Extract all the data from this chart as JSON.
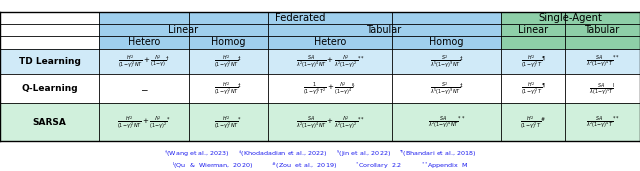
{
  "fig_width": 6.4,
  "fig_height": 1.71,
  "dpi": 100,
  "blue_header": "#9fcfed",
  "green_header": "#8ecfa8",
  "light_blue_row": "#d0eaf8",
  "light_green_row": "#d0f0dc",
  "white": "#ffffff",
  "cb": [
    0.0,
    0.155,
    0.295,
    0.418,
    0.613,
    0.783,
    0.883,
    1.0
  ],
  "rb": [
    0.175,
    0.395,
    0.565,
    0.715,
    0.79,
    0.862,
    0.93
  ],
  "fn_color": "#1a1aee",
  "fn_fs": 4.6,
  "header_fs": 7.2,
  "row_label_fs": 6.5,
  "formula_fs": 5.0
}
